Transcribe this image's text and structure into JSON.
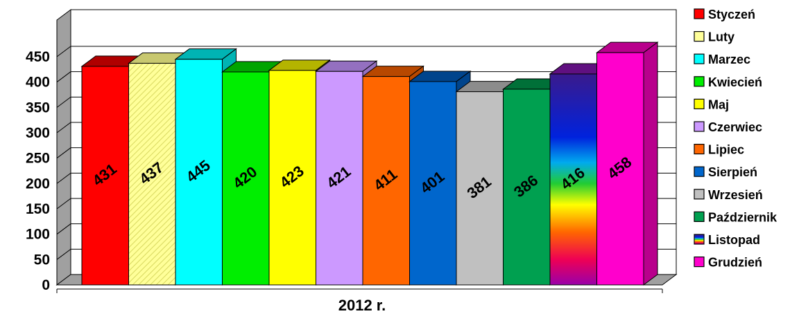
{
  "chart_data": {
    "type": "bar",
    "categories": [
      "2012 r."
    ],
    "xlabel": "2012 r.",
    "ylim": [
      0,
      450
    ],
    "yticks": [
      0,
      50,
      100,
      150,
      200,
      250,
      300,
      350,
      400,
      450
    ],
    "grid": true,
    "legend_position": "right",
    "style": "3d-clustered-columns",
    "series": [
      {
        "name": "Styczeń",
        "values": [
          431
        ],
        "color": "#ff0000",
        "side": "#b00000"
      },
      {
        "name": "Luty",
        "values": [
          437
        ],
        "color": "#ffff99",
        "side": "#c8c870",
        "pattern": "hatch"
      },
      {
        "name": "Marzec",
        "values": [
          445
        ],
        "color": "#00ffff",
        "side": "#00b4b4"
      },
      {
        "name": "Kwiecień",
        "values": [
          420
        ],
        "color": "#00ee00",
        "side": "#00a400"
      },
      {
        "name": "Maj",
        "values": [
          423
        ],
        "color": "#ffff00",
        "side": "#b4b400"
      },
      {
        "name": "Czerwiec",
        "values": [
          421
        ],
        "color": "#cc99ff",
        "side": "#9470c0"
      },
      {
        "name": "Lipiec",
        "values": [
          411
        ],
        "color": "#ff6600",
        "side": "#b84800"
      },
      {
        "name": "Sierpień",
        "values": [
          401
        ],
        "color": "#0066cc",
        "side": "#00448c"
      },
      {
        "name": "Wrzesień",
        "values": [
          381
        ],
        "color": "#c0c0c0",
        "side": "#8c8c8c"
      },
      {
        "name": "Październik",
        "values": [
          386
        ],
        "color": "#00a050",
        "side": "#007038"
      },
      {
        "name": "Listopad",
        "values": [
          416
        ],
        "color": "rainbow",
        "side": "#601080"
      },
      {
        "name": "Grudzień",
        "values": [
          458
        ],
        "color": "#ff00cc",
        "side": "#b8008c"
      }
    ]
  }
}
